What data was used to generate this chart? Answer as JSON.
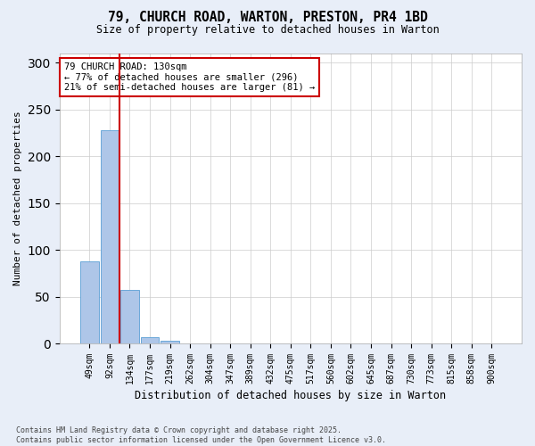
{
  "title_line1": "79, CHURCH ROAD, WARTON, PRESTON, PR4 1BD",
  "title_line2": "Size of property relative to detached houses in Warton",
  "xlabel": "Distribution of detached houses by size in Warton",
  "ylabel": "Number of detached properties",
  "categories": [
    "49sqm",
    "92sqm",
    "134sqm",
    "177sqm",
    "219sqm",
    "262sqm",
    "304sqm",
    "347sqm",
    "389sqm",
    "432sqm",
    "475sqm",
    "517sqm",
    "560sqm",
    "602sqm",
    "645sqm",
    "687sqm",
    "730sqm",
    "773sqm",
    "815sqm",
    "858sqm",
    "900sqm"
  ],
  "values": [
    88,
    228,
    57,
    7,
    3,
    0,
    0,
    0,
    0,
    0,
    0,
    0,
    0,
    0,
    0,
    0,
    0,
    0,
    0,
    0,
    0
  ],
  "bar_color": "#aec6e8",
  "bar_edge_color": "#5a9fd4",
  "property_line_color": "#cc0000",
  "annotation_text": "79 CHURCH ROAD: 130sqm\n← 77% of detached houses are smaller (296)\n21% of semi-detached houses are larger (81) →",
  "annotation_box_color": "#cc0000",
  "ylim": [
    0,
    310
  ],
  "yticks": [
    0,
    50,
    100,
    150,
    200,
    250,
    300
  ],
  "footnote": "Contains HM Land Registry data © Crown copyright and database right 2025.\nContains public sector information licensed under the Open Government Licence v3.0.",
  "background_color": "#e8eef8",
  "plot_background_color": "#ffffff"
}
